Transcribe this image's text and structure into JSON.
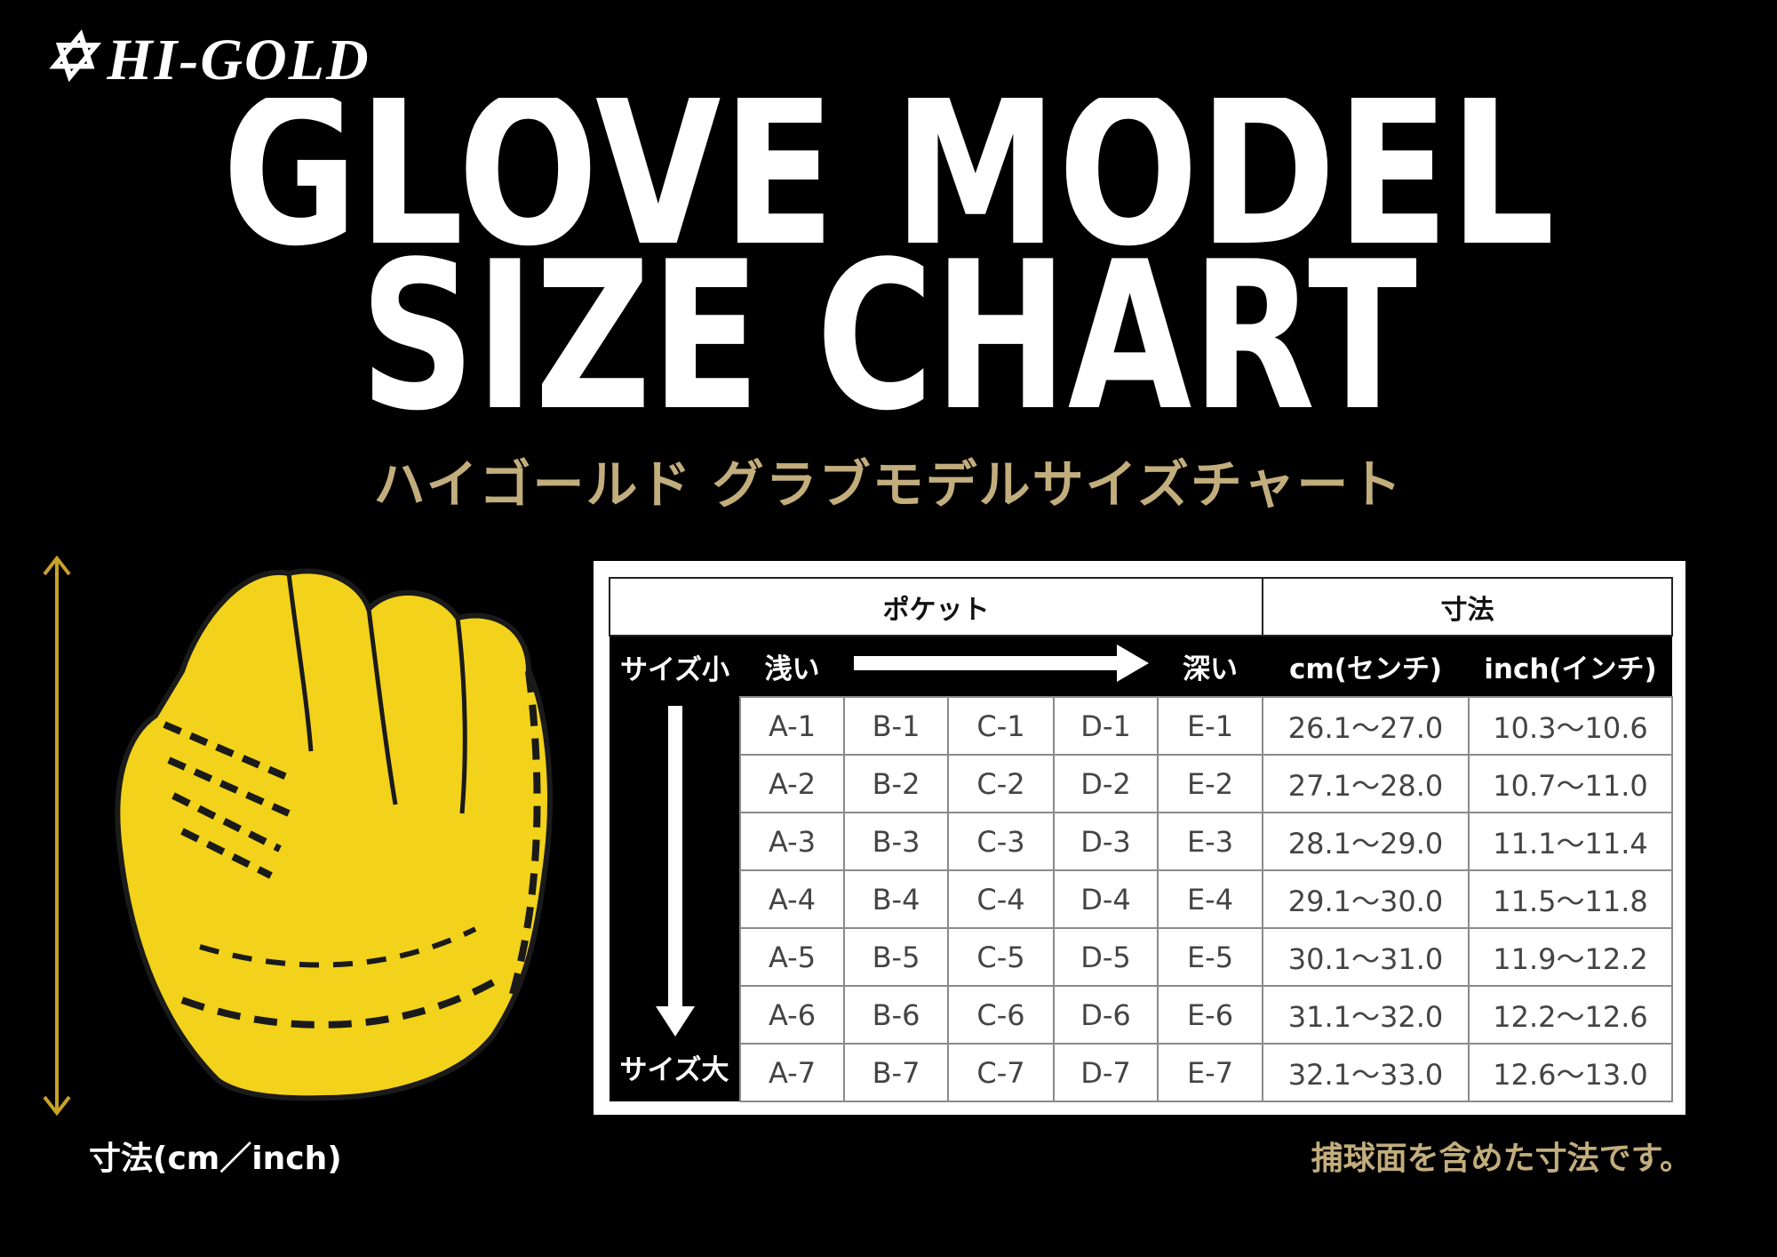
{
  "logo": "HI-GOLD",
  "title": [
    "GLOVE MODEL",
    "SIZE CHART"
  ],
  "subtitle": "ハイゴールド グラブモデルサイズチャート",
  "table": {
    "headers": [
      "ポケット",
      "寸法"
    ],
    "subheaders": {
      "small": "サイズ小",
      "shallow": "浅い",
      "deep": "深い",
      "cm": "cm(センチ)",
      "inch": "inch(インチ)"
    },
    "large": "サイズ大",
    "rows": [
      [
        "A-1",
        "B-1",
        "C-1",
        "D-1",
        "E-1",
        "26.1～27.0",
        "10.3～10.6"
      ],
      [
        "A-2",
        "B-2",
        "C-2",
        "D-2",
        "E-2",
        "27.1～28.0",
        "10.7～11.0"
      ],
      [
        "A-3",
        "B-3",
        "C-3",
        "D-3",
        "E-3",
        "28.1～29.0",
        "11.1～11.4"
      ],
      [
        "A-4",
        "B-4",
        "C-4",
        "D-4",
        "E-4",
        "29.1～30.0",
        "11.5～11.8"
      ],
      [
        "A-5",
        "B-5",
        "C-5",
        "D-5",
        "E-5",
        "30.1～31.0",
        "11.9～12.2"
      ],
      [
        "A-6",
        "B-6",
        "C-6",
        "D-6",
        "E-6",
        "31.1～32.0",
        "12.2～12.6"
      ],
      [
        "A-7",
        "B-7",
        "C-7",
        "D-7",
        "E-7",
        "32.1～33.0",
        "12.6～13.0"
      ]
    ]
  },
  "dimension_label": "寸法(cm／inch)",
  "note": "捕球面を含めた寸法です。"
}
